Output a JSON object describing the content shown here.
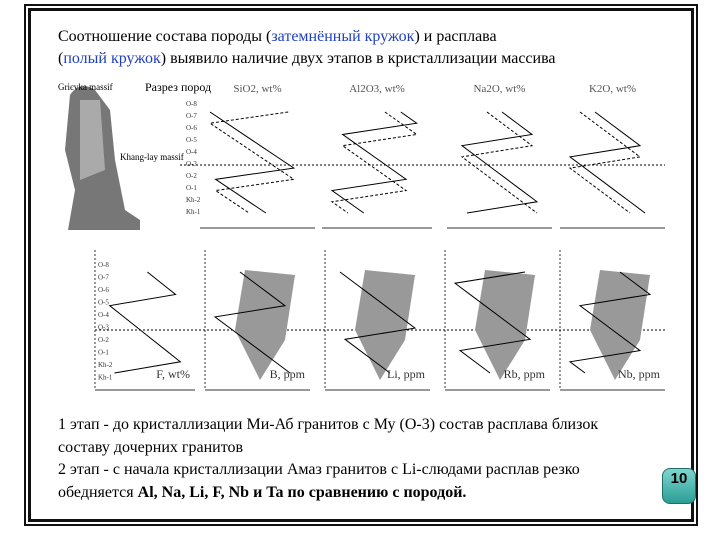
{
  "heading": {
    "parts": [
      "Соотношение состава породы (",
      "затемнённый кружок",
      ") и расплава",
      "(",
      "полый кружок",
      ") выявило наличие двух этапов  в кристаллизации массива"
    ]
  },
  "figure": {
    "map_labels": [
      "Griєvka massif",
      "Khang-lay massif"
    ],
    "section_label": "Разрез пород",
    "top_panels": [
      "SiO2, wt%",
      "Al2O3, wt%",
      "Na2O, wt%",
      "K2O, wt%"
    ],
    "bottom_panels": [
      "F, wt%",
      "B, ppm",
      "Li, ppm",
      "Rb, ppm",
      "Nb, ppm"
    ],
    "samples": [
      "O-8",
      "O-7",
      "O-6",
      "O-5",
      "O-4",
      "O-3",
      "O-2",
      "O-1",
      "Kh-2",
      "Kh-1"
    ]
  },
  "body": {
    "stage1": "1 этап - до кристаллизации Ми-Аб гранитов с Му (О-3) состав расплава близок составу дочерних гранитов",
    "stage2": "2 этап - с начала кристаллизации Амаз гранитов с Li-слюдами расплав резко обедняется ",
    "stage2_bold": "Al, Na, Li, F, Nb и Ta по сравнению с породой."
  },
  "page_number": "10"
}
